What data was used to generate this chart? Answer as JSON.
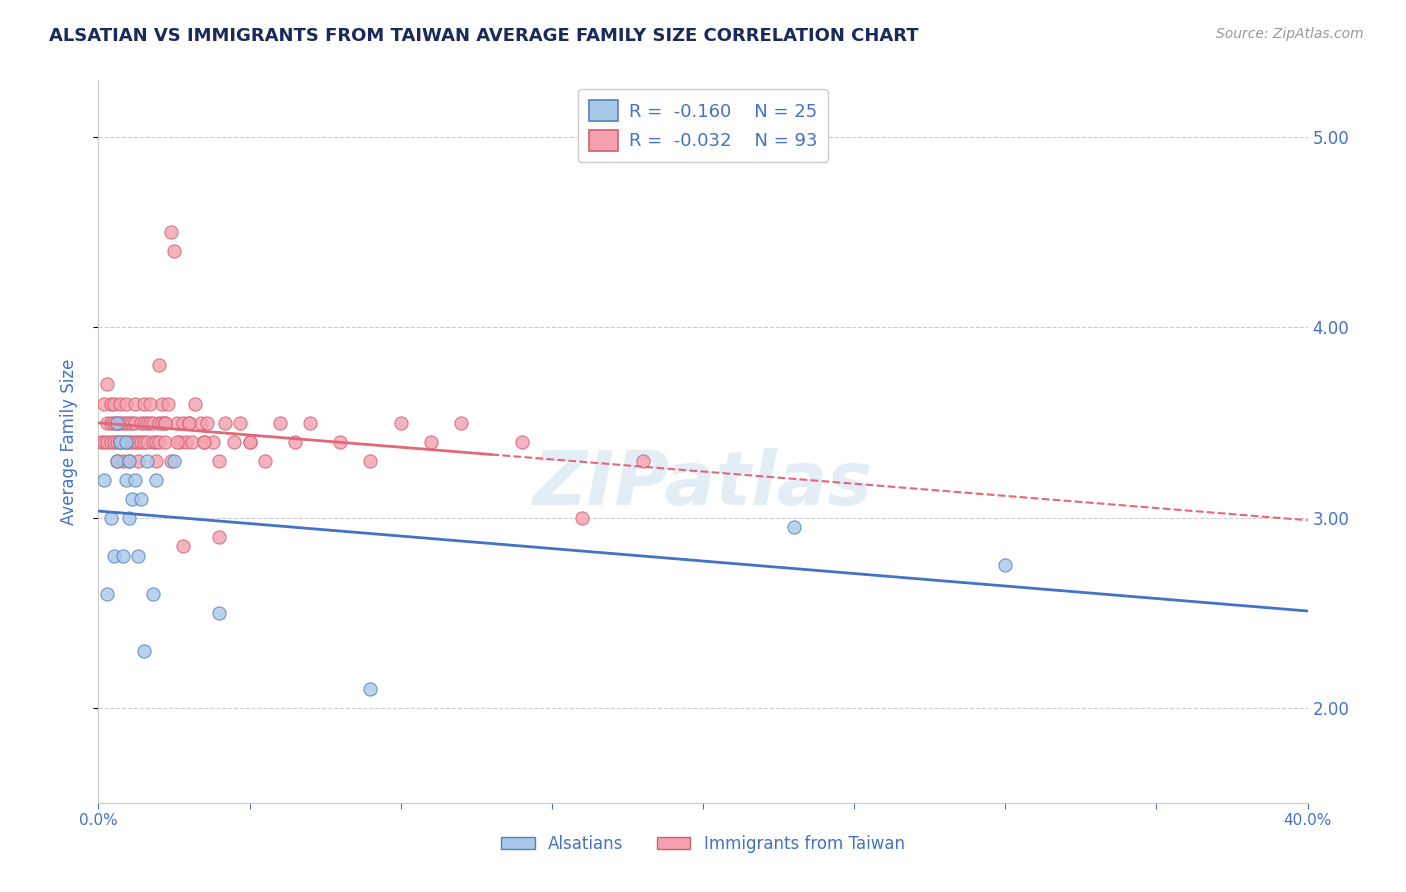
{
  "title": "ALSATIAN VS IMMIGRANTS FROM TAIWAN AVERAGE FAMILY SIZE CORRELATION CHART",
  "source_text": "Source: ZipAtlas.com",
  "ylabel": "Average Family Size",
  "xmin": 0.0,
  "xmax": 0.4,
  "ymin": 1.5,
  "ymax": 5.3,
  "yticks_right": [
    2.0,
    3.0,
    4.0,
    5.0
  ],
  "yticks_right_labels": [
    "2.00",
    "3.00",
    "4.00",
    "5.00"
  ],
  "grid_color": "#cccccc",
  "background_color": "#ffffff",
  "watermark_text": "ZIPatlas",
  "legend_label1": "Alsatians",
  "legend_label2": "Immigrants from Taiwan",
  "blue_color": "#a8c8e8",
  "pink_color": "#f4a0b0",
  "blue_edge_color": "#5580c0",
  "pink_edge_color": "#d06070",
  "blue_line_color": "#4472c4",
  "pink_line_color": "#e06878",
  "title_color": "#1a2a5a",
  "axis_label_color": "#4472c4",
  "alsatian_x": [
    0.002,
    0.003,
    0.004,
    0.005,
    0.006,
    0.006,
    0.007,
    0.008,
    0.009,
    0.009,
    0.01,
    0.01,
    0.011,
    0.012,
    0.013,
    0.014,
    0.015,
    0.016,
    0.018,
    0.019,
    0.025,
    0.04,
    0.09,
    0.23,
    0.3
  ],
  "alsatian_y": [
    3.2,
    2.6,
    3.0,
    2.8,
    3.3,
    3.5,
    3.4,
    2.8,
    3.4,
    3.2,
    3.3,
    3.0,
    3.1,
    3.2,
    2.8,
    3.1,
    2.3,
    3.3,
    2.6,
    3.2,
    3.3,
    2.5,
    2.1,
    2.95,
    2.75
  ],
  "taiwan_x": [
    0.001,
    0.002,
    0.002,
    0.003,
    0.003,
    0.003,
    0.004,
    0.004,
    0.004,
    0.005,
    0.005,
    0.005,
    0.006,
    0.006,
    0.006,
    0.007,
    0.007,
    0.007,
    0.008,
    0.008,
    0.008,
    0.009,
    0.009,
    0.009,
    0.01,
    0.01,
    0.01,
    0.011,
    0.011,
    0.012,
    0.012,
    0.012,
    0.013,
    0.013,
    0.014,
    0.014,
    0.015,
    0.015,
    0.015,
    0.016,
    0.016,
    0.017,
    0.017,
    0.018,
    0.018,
    0.019,
    0.019,
    0.02,
    0.02,
    0.021,
    0.021,
    0.022,
    0.022,
    0.023,
    0.024,
    0.025,
    0.026,
    0.027,
    0.028,
    0.029,
    0.03,
    0.031,
    0.032,
    0.034,
    0.035,
    0.036,
    0.038,
    0.04,
    0.042,
    0.045,
    0.047,
    0.05,
    0.055,
    0.06,
    0.065,
    0.07,
    0.08,
    0.09,
    0.1,
    0.11,
    0.12,
    0.14,
    0.16,
    0.18,
    0.02,
    0.022,
    0.024,
    0.026,
    0.028,
    0.03,
    0.035,
    0.04,
    0.05
  ],
  "taiwan_y": [
    3.4,
    3.4,
    3.6,
    3.5,
    3.4,
    3.7,
    3.5,
    3.4,
    3.6,
    3.5,
    3.4,
    3.6,
    3.5,
    3.4,
    3.3,
    3.5,
    3.4,
    3.6,
    3.5,
    3.4,
    3.3,
    3.5,
    3.4,
    3.6,
    3.5,
    3.4,
    3.3,
    3.5,
    3.4,
    3.5,
    3.4,
    3.6,
    3.4,
    3.3,
    3.5,
    3.4,
    3.5,
    3.4,
    3.6,
    3.5,
    3.4,
    3.5,
    3.6,
    3.4,
    3.5,
    3.4,
    3.3,
    3.5,
    3.4,
    3.5,
    3.6,
    3.4,
    3.5,
    3.6,
    4.5,
    4.4,
    3.5,
    3.4,
    3.5,
    3.4,
    3.5,
    3.4,
    3.6,
    3.5,
    3.4,
    3.5,
    3.4,
    3.3,
    3.5,
    3.4,
    3.5,
    3.4,
    3.3,
    3.5,
    3.4,
    3.5,
    3.4,
    3.3,
    3.5,
    3.4,
    3.5,
    3.4,
    3.0,
    3.3,
    3.8,
    3.5,
    3.3,
    3.4,
    2.85,
    3.5,
    3.4,
    2.9,
    3.4
  ]
}
